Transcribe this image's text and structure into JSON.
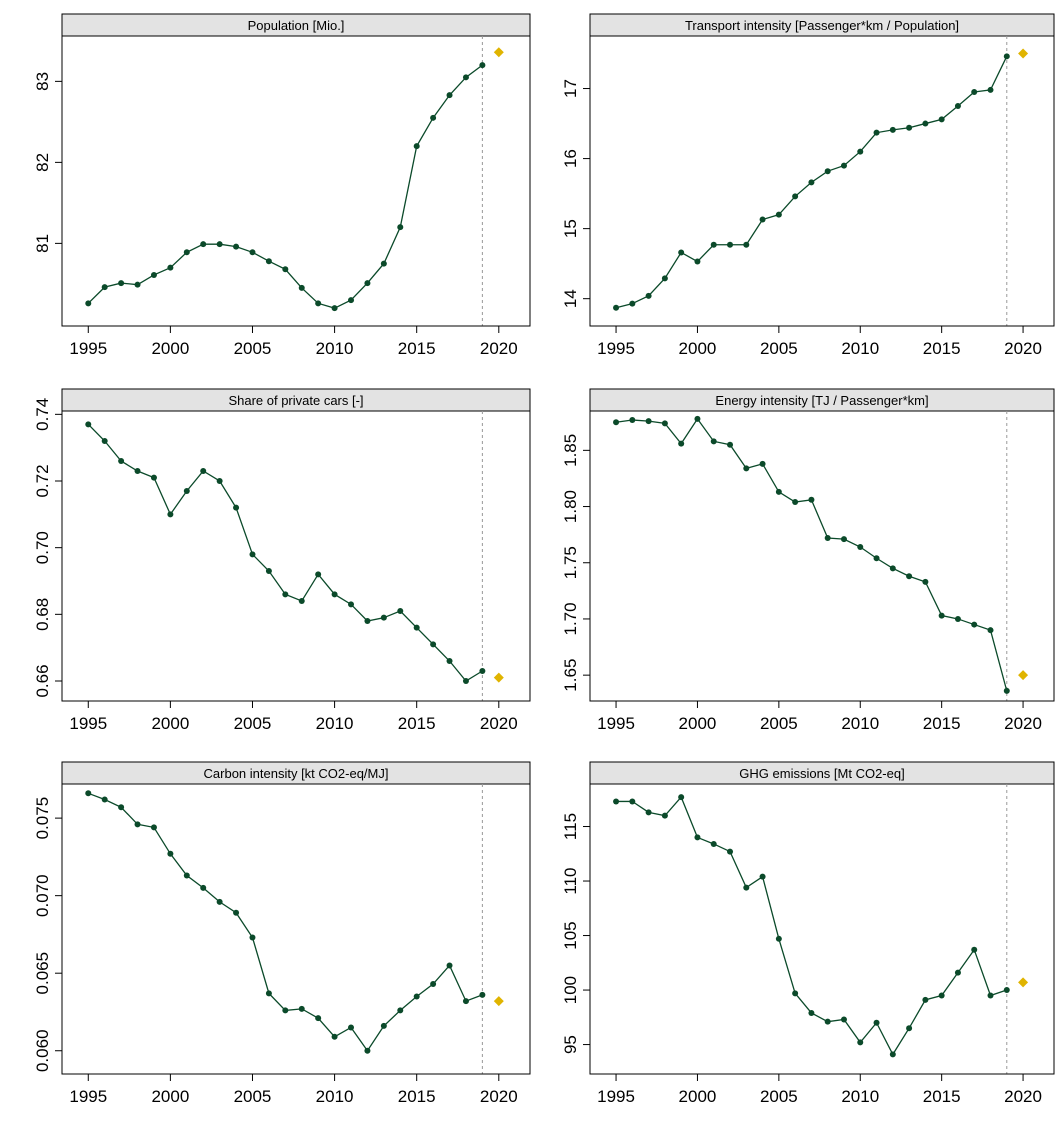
{
  "chart_data": [
    {
      "type": "line",
      "title": "Population [Mio.]",
      "x": [
        1995,
        1996,
        1997,
        1998,
        1999,
        2000,
        2001,
        2002,
        2003,
        2004,
        2005,
        2006,
        2007,
        2008,
        2009,
        2010,
        2011,
        2012,
        2013,
        2014,
        2015,
        2016,
        2017,
        2018,
        2019
      ],
      "series": [
        {
          "color": "#0b4a2a",
          "values": [
            80.26,
            80.46,
            80.51,
            80.49,
            80.61,
            80.7,
            80.89,
            80.99,
            80.99,
            80.96,
            80.89,
            80.78,
            80.68,
            80.45,
            80.26,
            80.2,
            80.3,
            80.51,
            80.75,
            81.2,
            82.2,
            82.55,
            82.83,
            83.05,
            83.2
          ]
        },
        {
          "color": "#e0b400",
          "marker": "diamond",
          "x": [
            2020
          ],
          "values": [
            83.36
          ]
        }
      ],
      "vline": 2019,
      "xlim": [
        1993.4,
        2021.9
      ],
      "xticks": [
        1995,
        2000,
        2005,
        2010,
        2015,
        2020
      ],
      "ylim": [
        79.98,
        83.56
      ],
      "yticks": [
        81,
        82,
        83
      ]
    },
    {
      "type": "line",
      "title": "Transport intensity [Passenger*km / Population]",
      "x": [
        1995,
        1996,
        1997,
        1998,
        1999,
        2000,
        2001,
        2002,
        2003,
        2004,
        2005,
        2006,
        2007,
        2008,
        2009,
        2010,
        2011,
        2012,
        2013,
        2014,
        2015,
        2016,
        2017,
        2018,
        2019
      ],
      "series": [
        {
          "color": "#0b4a2a",
          "values": [
            13.87,
            13.93,
            14.04,
            14.29,
            14.66,
            14.53,
            14.77,
            14.77,
            14.77,
            15.13,
            15.2,
            15.46,
            15.66,
            15.82,
            15.9,
            16.1,
            16.37,
            16.41,
            16.44,
            16.5,
            16.56,
            16.75,
            16.95,
            16.98,
            17.46
          ]
        },
        {
          "color": "#e0b400",
          "marker": "diamond",
          "x": [
            2020
          ],
          "values": [
            17.5
          ]
        }
      ],
      "vline": 2019,
      "xlim": [
        1993.4,
        2021.9
      ],
      "xticks": [
        1995,
        2000,
        2005,
        2010,
        2015,
        2020
      ],
      "ylim": [
        13.61,
        17.75
      ],
      "yticks": [
        14,
        15,
        16,
        17
      ]
    },
    {
      "type": "line",
      "title": "Share of private cars [-]",
      "x": [
        1995,
        1996,
        1997,
        1998,
        1999,
        2000,
        2001,
        2002,
        2003,
        2004,
        2005,
        2006,
        2007,
        2008,
        2009,
        2010,
        2011,
        2012,
        2013,
        2014,
        2015,
        2016,
        2017,
        2018,
        2019
      ],
      "series": [
        {
          "color": "#0b4a2a",
          "values": [
            0.737,
            0.732,
            0.726,
            0.723,
            0.721,
            0.71,
            0.717,
            0.723,
            0.72,
            0.712,
            0.698,
            0.693,
            0.686,
            0.684,
            0.692,
            0.686,
            0.683,
            0.678,
            0.679,
            0.681,
            0.676,
            0.671,
            0.666,
            0.66,
            0.663
          ]
        },
        {
          "color": "#e0b400",
          "marker": "diamond",
          "x": [
            2020
          ],
          "values": [
            0.661
          ]
        }
      ],
      "vline": 2019,
      "xlim": [
        1993.4,
        2021.9
      ],
      "xticks": [
        1995,
        2000,
        2005,
        2010,
        2015,
        2020
      ],
      "ylim": [
        0.654,
        0.741
      ],
      "yticks": [
        0.66,
        0.68,
        {
          "value": 0.7,
          "label": "0.70"
        },
        0.72,
        0.74
      ]
    },
    {
      "type": "line",
      "title": "Energy intensity [TJ / Passenger*km]",
      "x": [
        1995,
        1996,
        1997,
        1998,
        1999,
        2000,
        2001,
        2002,
        2003,
        2004,
        2005,
        2006,
        2007,
        2008,
        2009,
        2010,
        2011,
        2012,
        2013,
        2014,
        2015,
        2016,
        2017,
        2018,
        2019
      ],
      "series": [
        {
          "color": "#0b4a2a",
          "values": [
            1.875,
            1.877,
            1.876,
            1.874,
            1.856,
            1.878,
            1.858,
            1.855,
            1.834,
            1.838,
            1.813,
            1.804,
            1.806,
            1.772,
            1.771,
            1.764,
            1.754,
            1.745,
            1.738,
            1.733,
            1.703,
            1.7,
            1.695,
            1.69,
            1.636
          ]
        },
        {
          "color": "#e0b400",
          "marker": "diamond",
          "x": [
            2020
          ],
          "values": [
            1.65
          ]
        }
      ],
      "vline": 2019,
      "xlim": [
        1993.4,
        2021.9
      ],
      "xticks": [
        1995,
        2000,
        2005,
        2010,
        2015,
        2020
      ],
      "ylim": [
        1.627,
        1.885
      ],
      "yticks": [
        1.65,
        {
          "value": 1.7,
          "label": "1.70"
        },
        1.75,
        {
          "value": 1.8,
          "label": "1.80"
        },
        1.85
      ]
    },
    {
      "type": "line",
      "title": "Carbon intensity [kt CO2-eq/MJ]",
      "x": [
        1995,
        1996,
        1997,
        1998,
        1999,
        2000,
        2001,
        2002,
        2003,
        2004,
        2005,
        2006,
        2007,
        2008,
        2009,
        2010,
        2011,
        2012,
        2013,
        2014,
        2015,
        2016,
        2017,
        2018,
        2019
      ],
      "series": [
        {
          "color": "#0b4a2a",
          "values": [
            0.0766,
            0.0762,
            0.0757,
            0.0746,
            0.0744,
            0.0727,
            0.0713,
            0.0705,
            0.0696,
            0.0689,
            0.0673,
            0.0637,
            0.0626,
            0.0627,
            0.0621,
            0.0609,
            0.0615,
            0.06,
            0.0616,
            0.0626,
            0.0635,
            0.0643,
            0.0655,
            0.0632,
            0.0636
          ]
        },
        {
          "color": "#e0b400",
          "marker": "diamond",
          "x": [
            2020
          ],
          "values": [
            0.0632
          ]
        }
      ],
      "vline": 2019,
      "xlim": [
        1993.4,
        2021.9
      ],
      "xticks": [
        1995,
        2000,
        2005,
        2010,
        2015,
        2020
      ],
      "ylim": [
        0.0585,
        0.0772
      ],
      "yticks": [
        {
          "value": 0.06,
          "label": "0.060"
        },
        0.065,
        {
          "value": 0.07,
          "label": "0.070"
        },
        0.075
      ]
    },
    {
      "type": "line",
      "title": "GHG emissions [Mt CO2-eq]",
      "x": [
        1995,
        1996,
        1997,
        1998,
        1999,
        2000,
        2001,
        2002,
        2003,
        2004,
        2005,
        2006,
        2007,
        2008,
        2009,
        2010,
        2011,
        2012,
        2013,
        2014,
        2015,
        2016,
        2017,
        2018,
        2019
      ],
      "series": [
        {
          "color": "#0b4a2a",
          "values": [
            117.3,
            117.3,
            116.3,
            116.0,
            117.7,
            114.0,
            113.4,
            112.7,
            109.4,
            110.4,
            104.7,
            99.7,
            97.9,
            97.1,
            97.3,
            95.2,
            97.0,
            94.1,
            96.5,
            99.1,
            99.5,
            101.6,
            103.7,
            99.5,
            100.0
          ]
        },
        {
          "color": "#e0b400",
          "marker": "diamond",
          "x": [
            2020
          ],
          "values": [
            100.7
          ]
        }
      ],
      "vline": 2019,
      "xlim": [
        1993.4,
        2021.9
      ],
      "xticks": [
        1995,
        2000,
        2005,
        2010,
        2015,
        2020
      ],
      "ylim": [
        92.3,
        118.9
      ],
      "yticks": [
        95,
        100,
        105,
        110,
        115
      ]
    }
  ]
}
